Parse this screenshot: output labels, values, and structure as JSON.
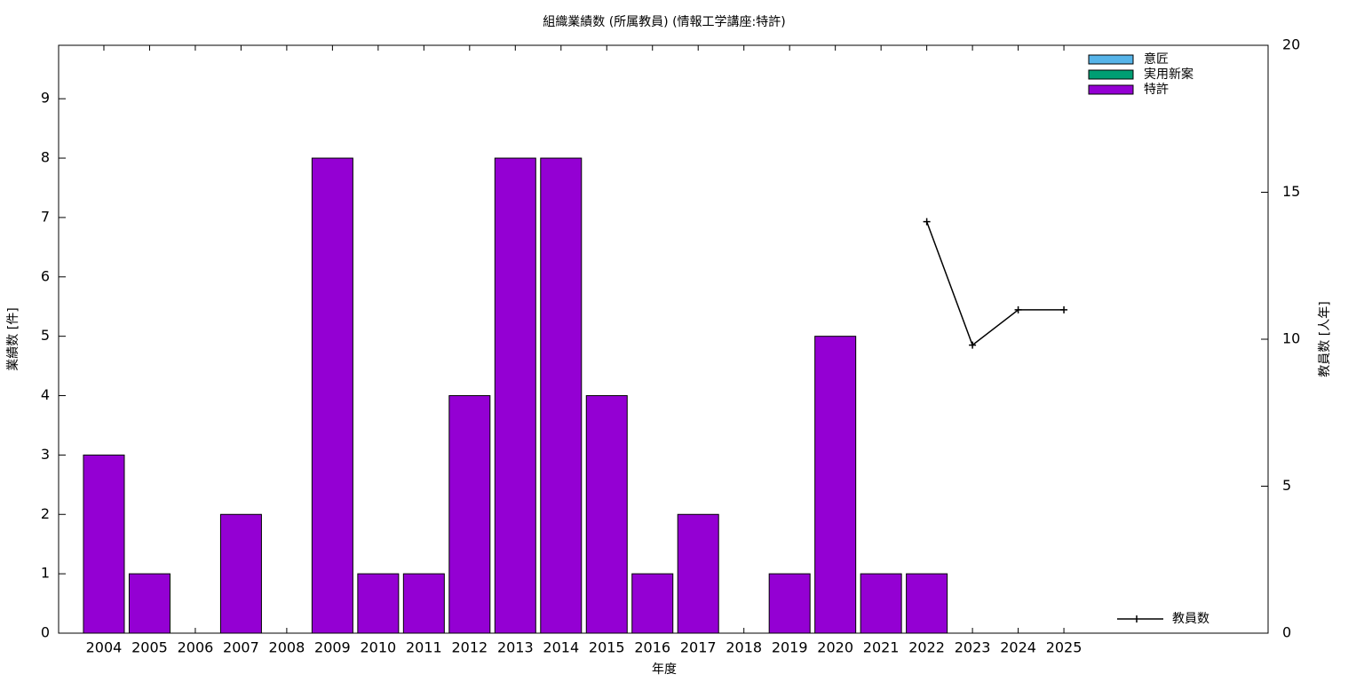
{
  "chart_data": {
    "type": "bar",
    "stacked": true,
    "title": "組織業績数 (所属教員) (情報工学講座:特許)",
    "x_label": "年度",
    "y_label": "業績数 [件]",
    "y2_label": "教員数 [人年]",
    "categories": [
      "2004",
      "2005",
      "2006",
      "2007",
      "2008",
      "2009",
      "2010",
      "2011",
      "2012",
      "2013",
      "2014",
      "2015",
      "2016",
      "2017",
      "2018",
      "2019",
      "2020",
      "2021",
      "2022",
      "2023",
      "2024",
      "2025"
    ],
    "series": [
      {
        "name": "意匠",
        "color": "#56b4e9",
        "values": [
          0,
          0,
          0,
          0,
          0,
          0,
          0,
          0,
          0,
          0,
          0,
          0,
          0,
          0,
          0,
          0,
          0,
          0,
          0,
          0,
          0,
          0
        ]
      },
      {
        "name": "実用新案",
        "color": "#009e73",
        "values": [
          0,
          0,
          0,
          0,
          0,
          0,
          0,
          0,
          0,
          0,
          0,
          0,
          0,
          0,
          0,
          0,
          0,
          0,
          0,
          0,
          0,
          0
        ]
      },
      {
        "name": "特許",
        "color": "#9400d3",
        "values": [
          3,
          1,
          0,
          2,
          0,
          8,
          1,
          1,
          4,
          8,
          8,
          4,
          1,
          2,
          0,
          1,
          5,
          1,
          1,
          0,
          0,
          0
        ]
      },
      {
        "name": "教員数",
        "color": "#000000",
        "type": "line",
        "axis": "y2",
        "values": [
          null,
          null,
          null,
          null,
          null,
          null,
          null,
          null,
          null,
          null,
          null,
          null,
          null,
          null,
          null,
          null,
          null,
          null,
          14,
          9.8,
          11,
          11
        ]
      }
    ],
    "ylim": [
      0,
      9.9
    ],
    "yticks": [
      0,
      1,
      2,
      3,
      4,
      5,
      6,
      7,
      8,
      9
    ],
    "y2lim": [
      0,
      20
    ],
    "y2ticks": [
      0,
      5,
      10,
      15,
      20
    ],
    "legend": "top-right"
  }
}
